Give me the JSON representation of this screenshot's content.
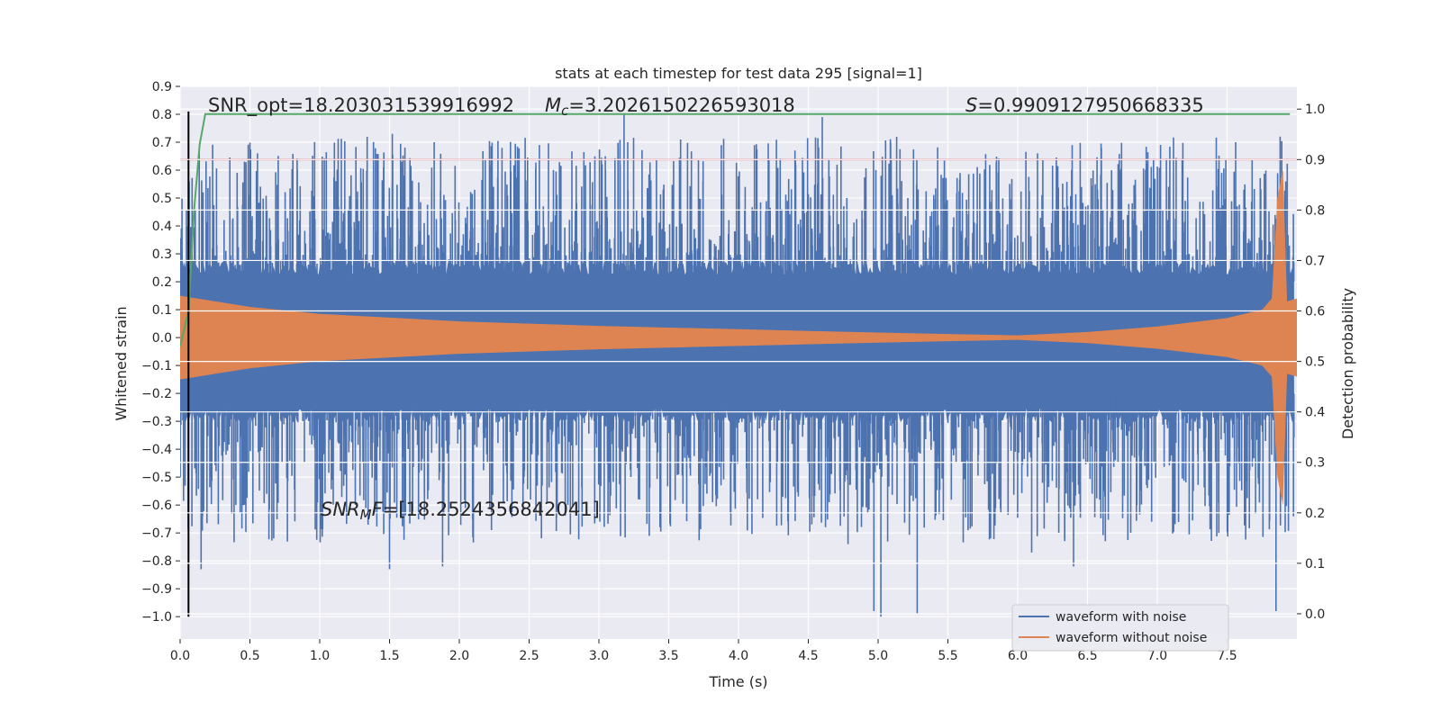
{
  "chart_data": {
    "type": "line",
    "title": "stats at each timestep for test data 295 [signal=1]",
    "xlabel": "Time (s)",
    "ylabel_left": "Whitened strain",
    "ylabel_right": "Detection probability",
    "xlim": [
      0,
      8.0
    ],
    "ylim_left": [
      -1.08,
      0.9
    ],
    "ylim_right": [
      -0.05,
      1.045
    ],
    "x_ticks": [
      0.0,
      0.5,
      1.0,
      1.5,
      2.0,
      2.5,
      3.0,
      3.5,
      4.0,
      4.5,
      5.0,
      5.5,
      6.0,
      6.5,
      7.0,
      7.5
    ],
    "x_tick_labels": [
      "0.0",
      "0.5",
      "1.0",
      "1.5",
      "2.0",
      "2.5",
      "3.0",
      "3.5",
      "4.0",
      "4.5",
      "5.0",
      "5.5",
      "6.0",
      "6.5",
      "7.0",
      "7.5"
    ],
    "y_left_ticks": [
      0.9,
      0.8,
      0.7,
      0.6,
      0.5,
      0.4,
      0.3,
      0.2,
      0.1,
      0.0,
      -0.1,
      -0.2,
      -0.3,
      -0.4,
      -0.5,
      -0.6,
      -0.7,
      -0.8,
      -0.9,
      -1.0
    ],
    "y_left_tick_labels": [
      "0.9",
      "0.8",
      "0.7",
      "0.6",
      "0.5",
      "0.4",
      "0.3",
      "0.2",
      "0.1",
      "0.0",
      "−0.1",
      "−0.2",
      "−0.3",
      "−0.4",
      "−0.5",
      "−0.6",
      "−0.7",
      "−0.8",
      "−0.9",
      "−1.0"
    ],
    "y_right_ticks": [
      1.0,
      0.9,
      0.8,
      0.7,
      0.6,
      0.5,
      0.4,
      0.3,
      0.2,
      0.1,
      0.0
    ],
    "y_right_tick_labels": [
      "1.0",
      "0.9",
      "0.8",
      "0.7",
      "0.6",
      "0.5",
      "0.4",
      "0.3",
      "0.2",
      "0.1",
      "0.0"
    ],
    "grid": true,
    "legend_position": "lower-right",
    "series": [
      {
        "name": "waveform with noise",
        "color": "#4c72b0",
        "kind": "dense-noise",
        "typical_upper": 0.25,
        "typical_lower": -0.28,
        "max": 0.8,
        "min": -1.0
      },
      {
        "name": "waveform without noise",
        "color": "#dd8452",
        "kind": "chirp-envelope",
        "envelope": [
          {
            "x": 0.0,
            "y": 0.15
          },
          {
            "x": 0.5,
            "y": 0.11
          },
          {
            "x": 1.0,
            "y": 0.085
          },
          {
            "x": 2.0,
            "y": 0.058
          },
          {
            "x": 3.0,
            "y": 0.042
          },
          {
            "x": 4.0,
            "y": 0.03
          },
          {
            "x": 5.0,
            "y": 0.018
          },
          {
            "x": 6.0,
            "y": 0.008
          },
          {
            "x": 6.5,
            "y": 0.02
          },
          {
            "x": 7.0,
            "y": 0.04
          },
          {
            "x": 7.5,
            "y": 0.07
          },
          {
            "x": 7.75,
            "y": 0.1
          },
          {
            "x": 7.82,
            "y": 0.14
          },
          {
            "x": 7.86,
            "y": 0.5
          },
          {
            "x": 7.9,
            "y": 0.6
          },
          {
            "x": 7.93,
            "y": 0.13
          },
          {
            "x": 8.0,
            "y": 0.14
          }
        ]
      },
      {
        "name": "",
        "color": "#55a868",
        "axis": "right",
        "kind": "detection-probability",
        "points": [
          {
            "x": 0.0,
            "y": 0.53
          },
          {
            "x": 0.06,
            "y": 0.6
          },
          {
            "x": 0.1,
            "y": 0.8
          },
          {
            "x": 0.14,
            "y": 0.93
          },
          {
            "x": 0.18,
            "y": 0.99
          },
          {
            "x": 0.25,
            "y": 0.99
          },
          {
            "x": 7.95,
            "y": 0.99
          }
        ]
      }
    ],
    "threshold_line": {
      "axis": "right",
      "y": 0.9,
      "color": "#c44e52"
    },
    "vertical_marker": {
      "x": 0.06,
      "y_from": -1.0,
      "y_to": 0.81,
      "color": "#000000"
    },
    "annotations": {
      "snr_opt": "SNR_opt=18.203031539916992",
      "mc_symbol": "M",
      "mc_sub": "c",
      "mc_value": "=3.2026150226593018",
      "s_symbol": "S",
      "s_value": "=0.9909127950668335",
      "snr_mf_symbol": "SNR",
      "snr_mf_sub": "M",
      "snr_mf_tail_symbol": "F",
      "snr_mf_value": "=[18.2524356842041]"
    }
  }
}
